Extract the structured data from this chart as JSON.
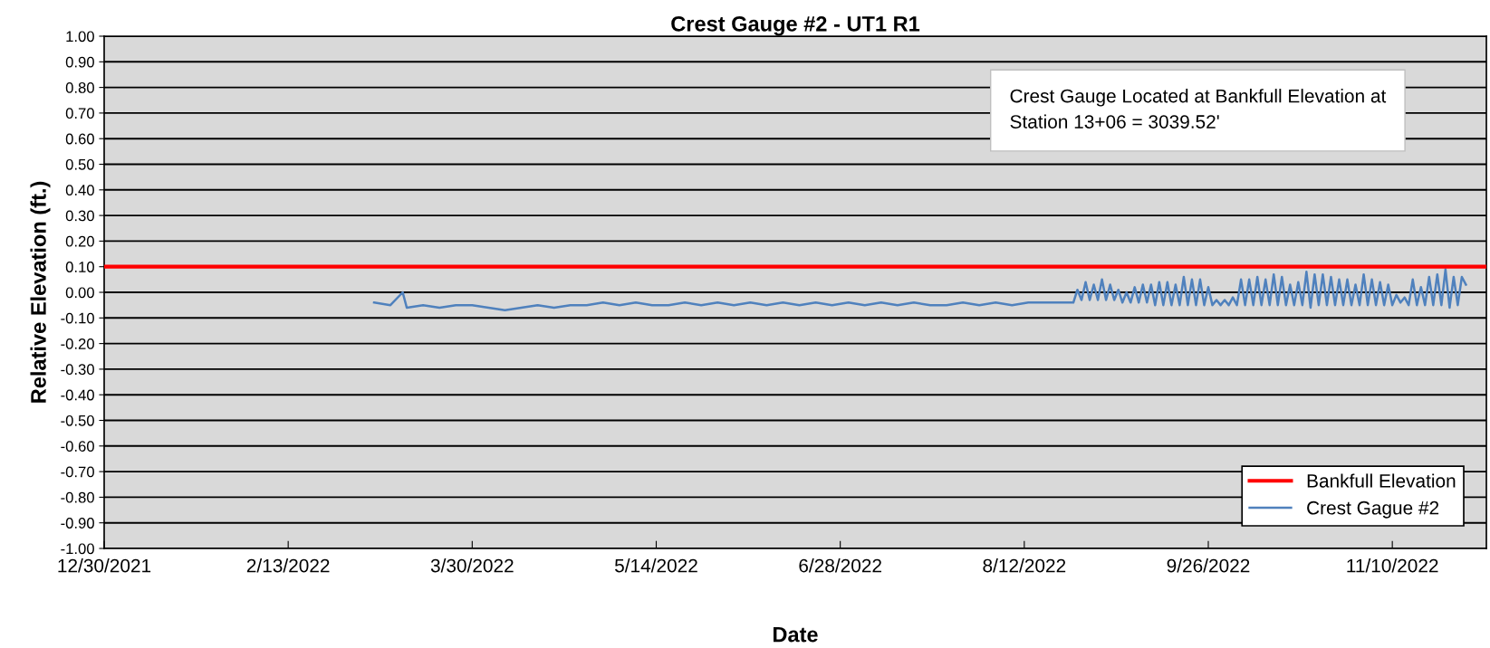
{
  "chart_data": {
    "type": "line",
    "title": "Crest Gauge #2 - UT1 R1",
    "xlabel": "Date",
    "ylabel": "Relative Elevation (ft.)",
    "annotations": [
      "Crest Gauge Located at Bankfull Elevation at\nStation 13+06 = 3039.52'"
    ],
    "xlim": [
      "2021-12-30",
      "2022-12-03"
    ],
    "xticks": [
      {
        "value": "2021-12-30",
        "label": "12/30/2021"
      },
      {
        "value": "2022-02-13",
        "label": "2/13/2022"
      },
      {
        "value": "2022-03-30",
        "label": "3/30/2022"
      },
      {
        "value": "2022-05-14",
        "label": "5/14/2022"
      },
      {
        "value": "2022-06-28",
        "label": "6/28/2022"
      },
      {
        "value": "2022-08-12",
        "label": "8/12/2022"
      },
      {
        "value": "2022-09-26",
        "label": "9/26/2022"
      },
      {
        "value": "2022-11-10",
        "label": "11/10/2022"
      }
    ],
    "ylim": [
      -1.0,
      1.0
    ],
    "yticks": [
      {
        "value": -1.0,
        "label": "-1.00"
      },
      {
        "value": -0.9,
        "label": "-0.90"
      },
      {
        "value": -0.8,
        "label": "-0.80"
      },
      {
        "value": -0.7,
        "label": "-0.70"
      },
      {
        "value": -0.6,
        "label": "-0.60"
      },
      {
        "value": -0.5,
        "label": "-0.50"
      },
      {
        "value": -0.4,
        "label": "-0.40"
      },
      {
        "value": -0.3,
        "label": "-0.30"
      },
      {
        "value": -0.2,
        "label": "-0.20"
      },
      {
        "value": -0.1,
        "label": "-0.10"
      },
      {
        "value": 0.0,
        "label": "0.00"
      },
      {
        "value": 0.1,
        "label": "0.10"
      },
      {
        "value": 0.2,
        "label": "0.20"
      },
      {
        "value": 0.3,
        "label": "0.30"
      },
      {
        "value": 0.4,
        "label": "0.40"
      },
      {
        "value": 0.5,
        "label": "0.50"
      },
      {
        "value": 0.6,
        "label": "0.60"
      },
      {
        "value": 0.7,
        "label": "0.70"
      },
      {
        "value": 0.8,
        "label": "0.80"
      },
      {
        "value": 0.9,
        "label": "0.90"
      },
      {
        "value": 1.0,
        "label": "1.00"
      }
    ],
    "grid": "y",
    "legend": "bottom right",
    "series": [
      {
        "name": "Bankfull Elevation",
        "color": "#ff0000",
        "x": [
          "2021-12-30",
          "2022-12-03"
        ],
        "values": [
          0.1,
          0.1
        ]
      },
      {
        "name": "Crest Gague #2",
        "color": "#4f81bd",
        "x": [
          "2022-03-06",
          "2022-03-10",
          "2022-03-13",
          "2022-03-14",
          "2022-03-18",
          "2022-03-22",
          "2022-03-26",
          "2022-03-30",
          "2022-04-03",
          "2022-04-07",
          "2022-04-11",
          "2022-04-15",
          "2022-04-19",
          "2022-04-23",
          "2022-04-27",
          "2022-05-01",
          "2022-05-05",
          "2022-05-09",
          "2022-05-13",
          "2022-05-17",
          "2022-05-21",
          "2022-05-25",
          "2022-05-29",
          "2022-06-02",
          "2022-06-06",
          "2022-06-10",
          "2022-06-14",
          "2022-06-18",
          "2022-06-22",
          "2022-06-26",
          "2022-06-30",
          "2022-07-04",
          "2022-07-08",
          "2022-07-12",
          "2022-07-16",
          "2022-07-20",
          "2022-07-24",
          "2022-07-28",
          "2022-08-01",
          "2022-08-05",
          "2022-08-09",
          "2022-08-13",
          "2022-08-17",
          "2022-08-21",
          "2022-08-23",
          "2022-08-24",
          "2022-08-25",
          "2022-08-26",
          "2022-08-27",
          "2022-08-28",
          "2022-08-29",
          "2022-08-30",
          "2022-08-31",
          "2022-09-01",
          "2022-09-02",
          "2022-09-03",
          "2022-09-04",
          "2022-09-05",
          "2022-09-06",
          "2022-09-07",
          "2022-09-08",
          "2022-09-09",
          "2022-09-10",
          "2022-09-11",
          "2022-09-12",
          "2022-09-13",
          "2022-09-14",
          "2022-09-15",
          "2022-09-16",
          "2022-09-17",
          "2022-09-18",
          "2022-09-19",
          "2022-09-20",
          "2022-09-21",
          "2022-09-22",
          "2022-09-23",
          "2022-09-24",
          "2022-09-25",
          "2022-09-26",
          "2022-09-27",
          "2022-09-28",
          "2022-09-29",
          "2022-09-30",
          "2022-10-01",
          "2022-10-02",
          "2022-10-03",
          "2022-10-04",
          "2022-10-05",
          "2022-10-06",
          "2022-10-07",
          "2022-10-08",
          "2022-10-09",
          "2022-10-10",
          "2022-10-11",
          "2022-10-12",
          "2022-10-13",
          "2022-10-14",
          "2022-10-15",
          "2022-10-16",
          "2022-10-17",
          "2022-10-18",
          "2022-10-19",
          "2022-10-20",
          "2022-10-21",
          "2022-10-22",
          "2022-10-23",
          "2022-10-24",
          "2022-10-25",
          "2022-10-26",
          "2022-10-27",
          "2022-10-28",
          "2022-10-29",
          "2022-10-30",
          "2022-10-31",
          "2022-11-01",
          "2022-11-02",
          "2022-11-03",
          "2022-11-04",
          "2022-11-05",
          "2022-11-06",
          "2022-11-07",
          "2022-11-08",
          "2022-11-09",
          "2022-11-10",
          "2022-11-11",
          "2022-11-12",
          "2022-11-13",
          "2022-11-14",
          "2022-11-15",
          "2022-11-16",
          "2022-11-17",
          "2022-11-18",
          "2022-11-19",
          "2022-11-20",
          "2022-11-21",
          "2022-11-22",
          "2022-11-23",
          "2022-11-24",
          "2022-11-25",
          "2022-11-26",
          "2022-11-27",
          "2022-11-28"
        ],
        "values": [
          -0.04,
          -0.05,
          0.0,
          -0.06,
          -0.05,
          -0.06,
          -0.05,
          -0.05,
          -0.06,
          -0.07,
          -0.06,
          -0.05,
          -0.06,
          -0.05,
          -0.05,
          -0.04,
          -0.05,
          -0.04,
          -0.05,
          -0.05,
          -0.04,
          -0.05,
          -0.04,
          -0.05,
          -0.04,
          -0.05,
          -0.04,
          -0.05,
          -0.04,
          -0.05,
          -0.04,
          -0.05,
          -0.04,
          -0.05,
          -0.04,
          -0.05,
          -0.05,
          -0.04,
          -0.05,
          -0.04,
          -0.05,
          -0.04,
          -0.04,
          -0.04,
          -0.04,
          -0.04,
          0.01,
          -0.03,
          0.04,
          -0.03,
          0.03,
          -0.03,
          0.05,
          -0.03,
          0.03,
          -0.03,
          0.01,
          -0.04,
          0.0,
          -0.04,
          0.02,
          -0.04,
          0.03,
          -0.04,
          0.03,
          -0.05,
          0.04,
          -0.05,
          0.04,
          -0.05,
          0.03,
          -0.05,
          0.06,
          -0.05,
          0.05,
          -0.05,
          0.05,
          -0.05,
          0.02,
          -0.05,
          -0.03,
          -0.05,
          -0.03,
          -0.05,
          -0.02,
          -0.05,
          0.05,
          -0.05,
          0.05,
          -0.05,
          0.06,
          -0.05,
          0.05,
          -0.05,
          0.07,
          -0.05,
          0.06,
          -0.05,
          0.03,
          -0.05,
          0.04,
          -0.05,
          0.08,
          -0.06,
          0.07,
          -0.05,
          0.07,
          -0.05,
          0.06,
          -0.05,
          0.05,
          -0.05,
          0.05,
          -0.05,
          0.03,
          -0.05,
          0.07,
          -0.05,
          0.05,
          -0.05,
          0.04,
          -0.05,
          0.03,
          -0.05,
          -0.01,
          -0.04,
          -0.02,
          -0.05,
          0.05,
          -0.05,
          0.02,
          -0.05,
          0.06,
          -0.05,
          0.07,
          -0.05,
          0.09,
          -0.06,
          0.06,
          -0.05,
          0.06,
          0.03
        ]
      }
    ]
  }
}
